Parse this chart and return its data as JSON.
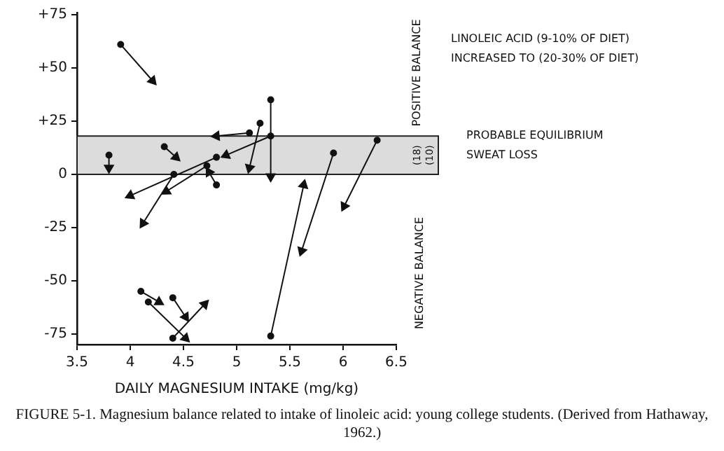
{
  "chart_data": {
    "type": "line",
    "xlabel": "DAILY MAGNESIUM INTAKE (mg/kg)",
    "xlim": [
      3.5,
      6.5
    ],
    "xticks": [
      3.5,
      4,
      4.5,
      5,
      5.5,
      6,
      6.5
    ],
    "ylim": [
      -80,
      76
    ],
    "yticks": [
      {
        "value": 75,
        "label": "+75"
      },
      {
        "value": 50,
        "label": "+50"
      },
      {
        "value": 25,
        "label": "+25"
      },
      0,
      -25,
      -50,
      -75
    ],
    "grid": false,
    "legend": false,
    "marker": "circle",
    "line_style": "solid",
    "series": [
      {
        "color": "#111111",
        "x": [
          3.91,
          4.21
        ],
        "values": [
          61,
          44
        ]
      },
      {
        "color": "#111111",
        "x": [
          3.8,
          3.8
        ],
        "values": [
          9,
          3
        ]
      },
      {
        "color": "#111111",
        "x": [
          4.32,
          4.43
        ],
        "values": [
          13,
          8
        ]
      },
      {
        "color": "#111111",
        "x": [
          5.12,
          4.81
        ],
        "values": [
          19.5,
          18
        ]
      },
      {
        "color": "#111111",
        "x": [
          5.22,
          5.12
        ],
        "values": [
          24,
          3
        ]
      },
      {
        "color": "#111111",
        "x": [
          5.32,
          5.32
        ],
        "values": [
          35,
          -1
        ]
      },
      {
        "color": "#111111",
        "x": [
          5.32,
          4.9
        ],
        "values": [
          18,
          9
        ]
      },
      {
        "color": "#111111",
        "x": [
          4.81,
          4.0
        ],
        "values": [
          8,
          -10
        ]
      },
      {
        "color": "#111111",
        "x": [
          4.41,
          4.12
        ],
        "values": [
          0,
          -23
        ]
      },
      {
        "color": "#111111",
        "x": [
          4.72,
          4.34
        ],
        "values": [
          4,
          -8
        ]
      },
      {
        "color": "#111111",
        "x": [
          4.81,
          4.74
        ],
        "values": [
          -5,
          1
        ]
      },
      {
        "color": "#111111",
        "x": [
          5.32,
          5.63
        ],
        "values": [
          -76,
          -5
        ]
      },
      {
        "color": "#111111",
        "x": [
          5.91,
          5.61
        ],
        "values": [
          10,
          -36
        ]
      },
      {
        "color": "#111111",
        "x": [
          6.32,
          6.01
        ],
        "values": [
          16,
          -15
        ]
      },
      {
        "color": "#111111",
        "x": [
          4.1,
          4.27
        ],
        "values": [
          -55,
          -60
        ]
      },
      {
        "color": "#111111",
        "x": [
          4.17,
          4.52
        ],
        "values": [
          -60,
          -77
        ]
      },
      {
        "color": "#111111",
        "x": [
          4.4,
          4.52
        ],
        "values": [
          -58,
          -67
        ]
      },
      {
        "color": "#111111",
        "x": [
          4.4,
          4.7
        ],
        "values": [
          -77,
          -61
        ]
      }
    ],
    "bands": [
      {
        "axis": "y",
        "from": 0,
        "to": 18,
        "label": "PROBABLE EQUILIBRIUM",
        "color": "#dcdcdc"
      }
    ],
    "annotations": [
      "LINOLEIC ACID (9-10% OF DIET)",
      "INCREASED TO (20-30% OF DIET)",
      "POSITIVE BALANCE",
      "NEGATIVE BALANCE",
      "SWEAT LOSS",
      "(18)",
      "(10)",
      "FIGURE 5-1. Magnesium balance related to intake of linoleic acid: young college students. (Derived from Hathaway, 1962.)"
    ]
  }
}
